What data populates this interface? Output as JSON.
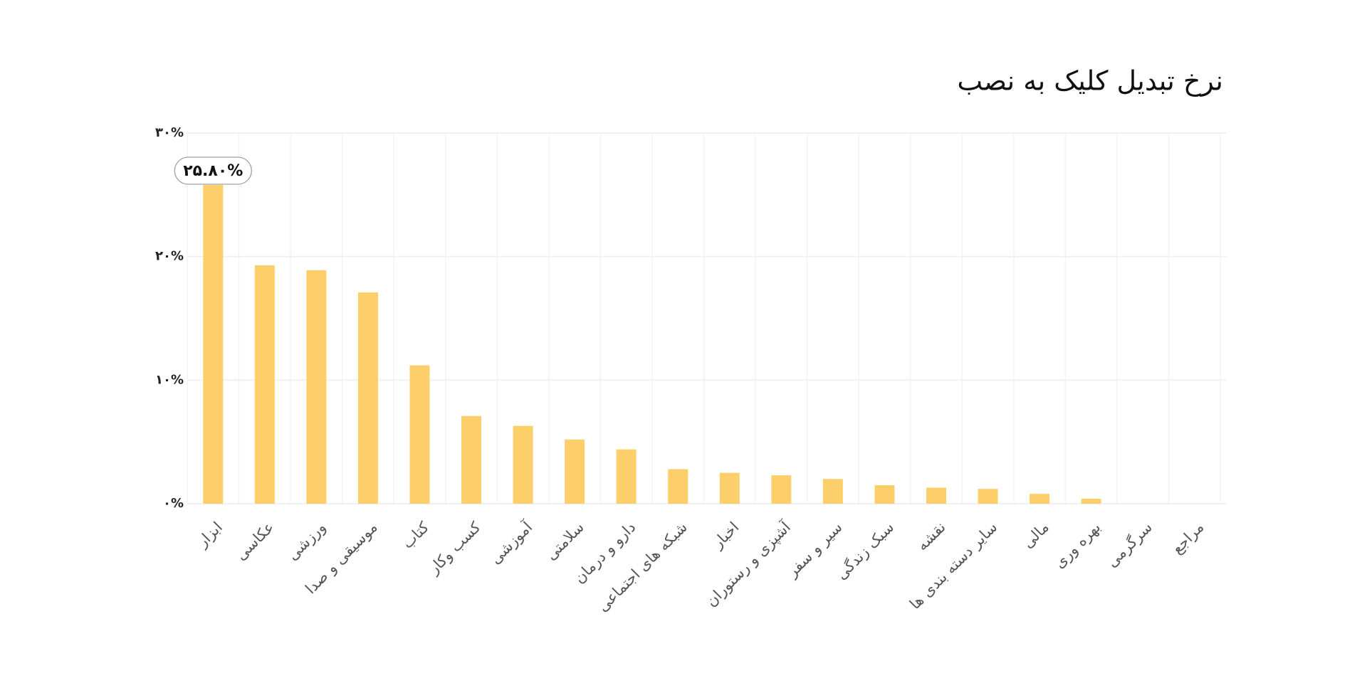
{
  "chart_data": {
    "type": "bar",
    "title": "نرخ تبدیل کلیک به نصب",
    "categories": [
      "ابزار",
      "عکاسی",
      "ورزشی",
      "موسیقی و صدا",
      "کتاب",
      "کسب وکار",
      "آموزشی",
      "سلامتی",
      "دارو و درمان",
      "شبکه های اجتماعی",
      "اخبار",
      "آشپزی و رستوران",
      "سیر و سفر",
      "سبک زندگی",
      "نقشه",
      "سایر دسته بندی ها",
      "مالی",
      "بهره وری",
      "سرگرمی",
      "مراجع"
    ],
    "values": [
      25.8,
      19.3,
      18.9,
      17.1,
      11.2,
      7.1,
      6.3,
      5.2,
      4.4,
      2.8,
      2.5,
      2.3,
      2.0,
      1.5,
      1.3,
      1.2,
      0.8,
      0.4,
      0,
      0
    ],
    "value_labels": [
      "۲۵.۸۰%",
      null,
      null,
      null,
      null,
      null,
      null,
      null,
      null,
      null,
      null,
      null,
      null,
      null,
      null,
      null,
      null,
      null,
      null,
      null
    ],
    "color": "#fdcf6b",
    "ylim": [
      0,
      30
    ],
    "yticks": [
      {
        "value": 0,
        "label": "۰%"
      },
      {
        "value": 10,
        "label": "۱۰%"
      },
      {
        "value": 20,
        "label": "۲۰%"
      },
      {
        "value": 30,
        "label": "۳۰%"
      }
    ],
    "grid": true
  }
}
